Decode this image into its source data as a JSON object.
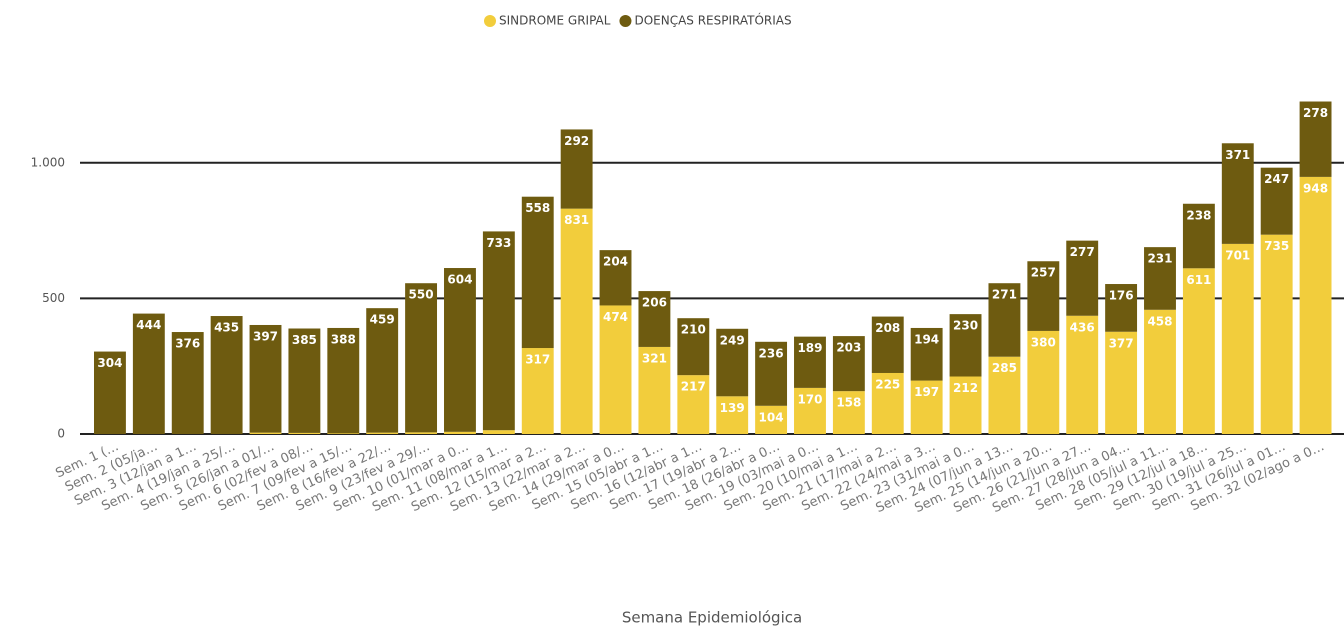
{
  "chart_data": {
    "type": "stacked_bar",
    "x_label": "Semana Epidemiológica",
    "categories": [
      "Sem. 1 (…",
      "Sem. 2 (05/ja…",
      "Sem. 3 (12/jan a 1…",
      "Sem. 4 (19/jan a 25/…",
      "Sem. 5 (26/jan a 01/…",
      "Sem. 6 (02/fev a 08/…",
      "Sem. 7 (09/fev a 15/…",
      "Sem. 8 (16/fev a 22/…",
      "Sem. 9 (23/fev a 29/…",
      "Sem. 10 (01/mar a 0…",
      "Sem. 11 (08/mar a 1…",
      "Sem. 12 (15/mar a 2…",
      "Sem. 13 (22/mar a 2…",
      "Sem. 14 (29/mar a 0…",
      "Sem. 15 (05/abr a 1…",
      "Sem. 16 (12/abr a 1…",
      "Sem. 17 (19/abr a 2…",
      "Sem. 18 (26/abr a 0…",
      "Sem. 19 (03/mai a 0…",
      "Sem. 20 (10/mai a 1…",
      "Sem. 21 (17/mai a 2…",
      "Sem. 22 (24/mai a 3…",
      "Sem. 23 (31/mai a 0…",
      "Sem. 24 (07/jun a 13…",
      "Sem. 25 (14/jun a 20…",
      "Sem. 26 (21/jun a 27…",
      "Sem. 27 (28/jun a 04…",
      "Sem. 28 (05/jul a 11…",
      "Sem. 29 (12/jul a 18…",
      "Sem. 30 (19/jul a 25…",
      "Sem. 31 (26/jul a 01…",
      "Sem. 32 (02/ago a 0…"
    ],
    "series": [
      {
        "name": "SINDROME GRIPAL",
        "color": "#f2cd3c",
        "values": [
          0,
          0,
          0,
          0,
          5,
          4,
          3,
          5,
          6,
          8,
          14,
          317,
          831,
          474,
          321,
          217,
          139,
          104,
          170,
          158,
          225,
          197,
          212,
          285,
          380,
          436,
          377,
          458,
          611,
          701,
          735,
          948
        ]
      },
      {
        "name": "DOENÇAS RESPIRATÓRIAS",
        "color": "#6e5b10",
        "values": [
          304,
          444,
          376,
          435,
          397,
          385,
          388,
          459,
          550,
          604,
          733,
          558,
          292,
          204,
          206,
          210,
          249,
          236,
          189,
          203,
          208,
          194,
          230,
          271,
          257,
          277,
          176,
          231,
          238,
          371,
          247,
          278
        ]
      }
    ],
    "ylim": [
      0,
      1250
    ],
    "yticks": [
      0,
      500,
      {
        "value": 1000,
        "label": "1.000"
      }
    ],
    "grid": true,
    "legend": "top"
  }
}
